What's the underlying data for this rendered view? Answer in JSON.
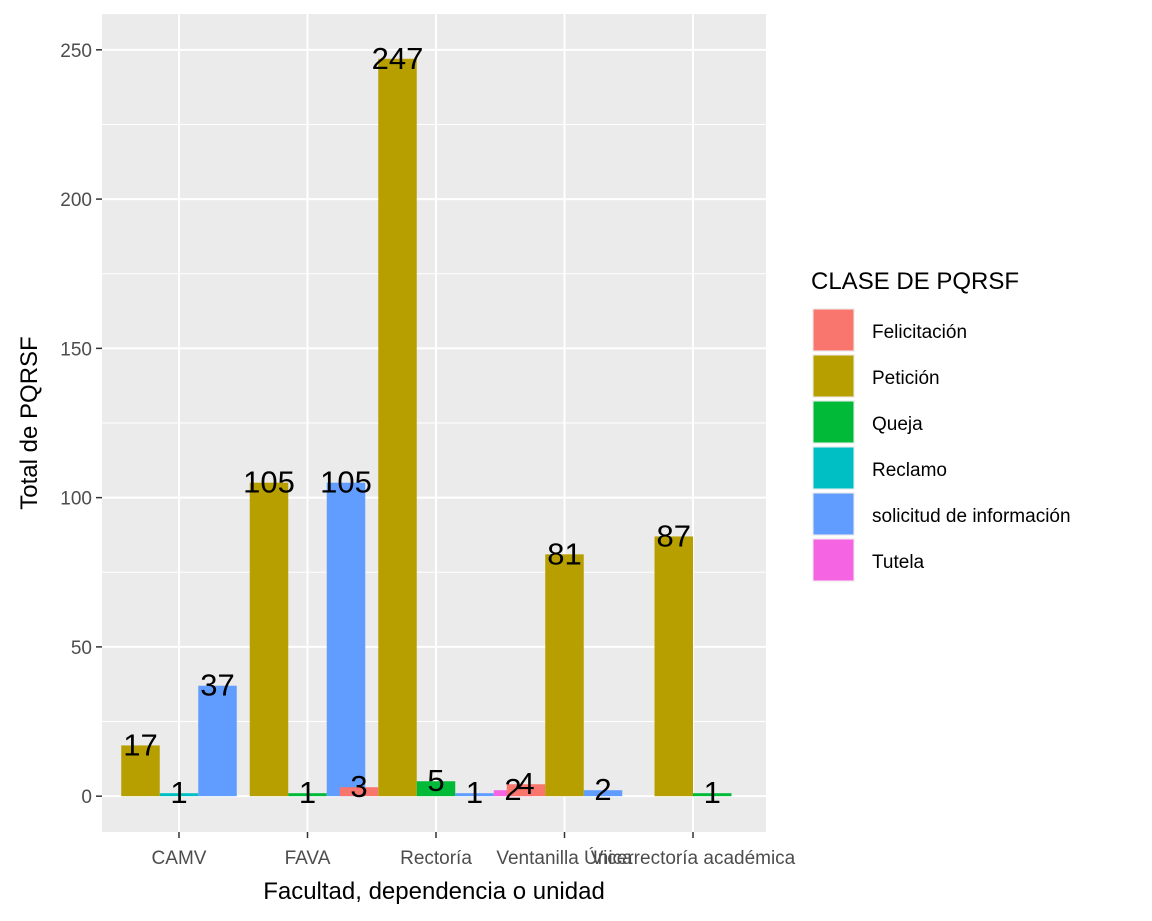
{
  "chart_data": {
    "type": "bar",
    "xlabel": "Facultad, dependencia o unidad",
    "ylabel": "Total de PQRSF",
    "ylim": [
      -12,
      262
    ],
    "yticks": [
      0,
      50,
      100,
      150,
      200,
      250
    ],
    "grid": true,
    "legend_position": "right",
    "legend_title": "CLASE DE PQRSF",
    "categories": [
      "CAMV",
      "FAVA",
      "Rectoría",
      "Ventanilla Única",
      "Vicerrectoría académica"
    ],
    "category_labels": [
      "CAMV",
      "FAVA",
      "Rectoría",
      "Ventanilla Única",
      "Vicerrectoría académica"
    ],
    "series": [
      {
        "name": "Felicitación",
        "color": "#F8766D"
      },
      {
        "name": "Petición",
        "color": "#B79F00"
      },
      {
        "name": "Queja",
        "color": "#00BA38"
      },
      {
        "name": "Reclamo",
        "color": "#00BFC4"
      },
      {
        "name": "solicitud de información",
        "color": "#619CFF"
      },
      {
        "name": "Tutela",
        "color": "#F564E3"
      }
    ],
    "groups": [
      {
        "category": "CAMV",
        "bars": [
          {
            "series": "Petición",
            "value": 17
          },
          {
            "series": "Reclamo",
            "value": 1
          },
          {
            "series": "solicitud de información",
            "value": 37
          }
        ]
      },
      {
        "category": "FAVA",
        "bars": [
          {
            "series": "Petición",
            "value": 105
          },
          {
            "series": "Queja",
            "value": 1
          },
          {
            "series": "solicitud de información",
            "value": 105
          }
        ]
      },
      {
        "category": "Rectoría",
        "bars": [
          {
            "series": "Felicitación",
            "value": 3
          },
          {
            "series": "Petición",
            "value": 247
          },
          {
            "series": "Queja",
            "value": 5
          },
          {
            "series": "solicitud de información",
            "value": 1
          },
          {
            "series": "Tutela",
            "value": 2
          }
        ]
      },
      {
        "category": "Ventanilla Única",
        "bars": [
          {
            "series": "Felicitación",
            "value": 4
          },
          {
            "series": "Petición",
            "value": 81
          },
          {
            "series": "solicitud de información",
            "value": 2
          }
        ]
      },
      {
        "category": "Vicerrectoría académica",
        "bars": [
          {
            "series": "Petición",
            "value": 87
          },
          {
            "series": "Queja",
            "value": 1
          }
        ]
      }
    ]
  }
}
